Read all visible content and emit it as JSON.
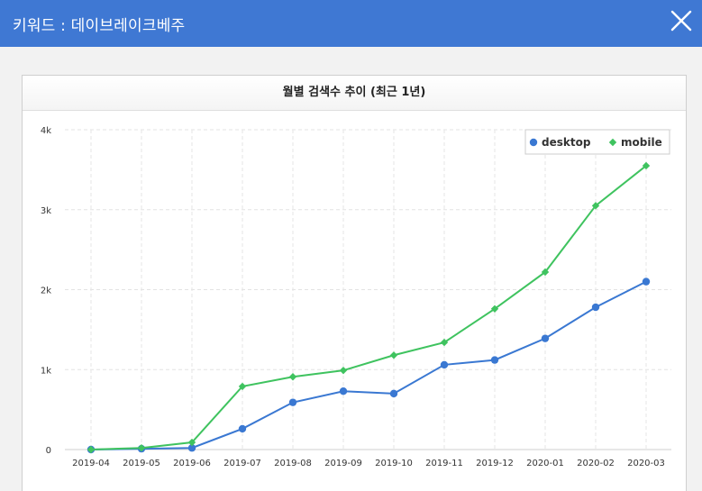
{
  "window": {
    "title": "키워드 : 데이브레이크베주"
  },
  "panel": {
    "title": "월별 검색수 추이 (최근 1년)"
  },
  "chart_data": {
    "type": "line",
    "title": "월별 검색수 추이 (최근 1년)",
    "xlabel": "",
    "ylabel": "",
    "categories": [
      "2019-04",
      "2019-05",
      "2019-06",
      "2019-07",
      "2019-08",
      "2019-09",
      "2019-10",
      "2019-11",
      "2019-12",
      "2020-01",
      "2020-02",
      "2020-03"
    ],
    "ylim": [
      0,
      4000
    ],
    "yticks": [
      0,
      1000,
      2000,
      3000,
      4000
    ],
    "ytick_labels": [
      "0",
      "1k",
      "2k",
      "3k",
      "4k"
    ],
    "grid": true,
    "legend_position": "top-right",
    "series": [
      {
        "name": "desktop",
        "color": "#3a78d2",
        "marker": "circle",
        "values": [
          0,
          10,
          20,
          260,
          590,
          730,
          700,
          1060,
          1120,
          1390,
          1780,
          2100
        ]
      },
      {
        "name": "mobile",
        "color": "#3fc35f",
        "marker": "diamond",
        "values": [
          0,
          20,
          90,
          790,
          910,
          990,
          1180,
          1340,
          1760,
          2220,
          3050,
          3550
        ]
      }
    ]
  },
  "icons": {
    "close": "close-icon"
  }
}
